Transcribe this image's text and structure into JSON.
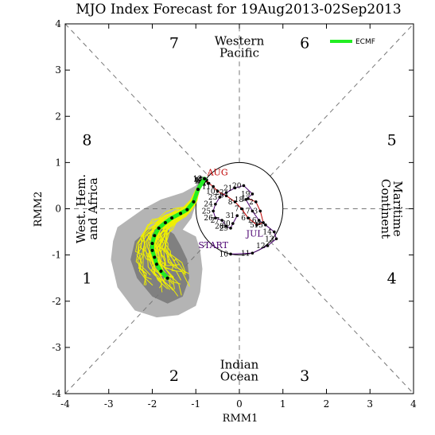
{
  "chart_data": {
    "type": "line",
    "title": "MJO Index Forecast for 19Aug2013-02Sep2013",
    "xlabel": "RMM1",
    "ylabel": "RMM2",
    "xlim": [
      -4,
      4
    ],
    "ylim": [
      -4,
      4
    ],
    "xticks": [
      "-4",
      "-3",
      "-2",
      "-1",
      "0",
      "1",
      "2",
      "3",
      "4"
    ],
    "yticks": [
      "-4",
      "-3",
      "-2",
      "-1",
      "0",
      "1",
      "2",
      "3",
      "4"
    ],
    "grid": false,
    "legend": {
      "position": "top-right",
      "entries": [
        "ECMF"
      ]
    },
    "phases": [
      {
        "label": "1",
        "x": -3.5,
        "y": -1.5
      },
      {
        "label": "2",
        "x": -1.5,
        "y": -3.6
      },
      {
        "label": "3",
        "x": 1.5,
        "y": -3.6
      },
      {
        "label": "4",
        "x": 3.5,
        "y": -1.5
      },
      {
        "label": "5",
        "x": 3.5,
        "y": 1.5
      },
      {
        "label": "6",
        "x": 1.5,
        "y": 3.6
      },
      {
        "label": "7",
        "x": -1.5,
        "y": 3.6
      },
      {
        "label": "8",
        "x": -3.5,
        "y": 1.5
      }
    ],
    "regions": [
      {
        "name": "west_hem",
        "lines": [
          "West. Hem.",
          "and Africa"
        ],
        "x": -3.5,
        "y": 0
      },
      {
        "name": "indian_ocean",
        "lines": [
          "Indian",
          "Ocean"
        ],
        "x": 0,
        "y": -3.5
      },
      {
        "name": "maritime",
        "lines": [
          "Maritime",
          "Continent"
        ],
        "x": 3.5,
        "y": 0
      },
      {
        "name": "western_pacific",
        "lines": [
          "Western",
          "Pacific"
        ],
        "x": 0,
        "y": 3.5
      }
    ],
    "month_labels": [
      {
        "text": "START",
        "x": -0.6,
        "y": -0.85
      },
      {
        "text": "JUL",
        "x": 0.35,
        "y": -0.6
      },
      {
        "text": "AUG",
        "x": -0.5,
        "y": 0.72
      }
    ],
    "series": [
      {
        "name": "July",
        "color": "#4a0070",
        "points": [
          {
            "day": "10",
            "x": -0.2,
            "y": -0.98
          },
          {
            "day": "11",
            "x": 0.3,
            "y": -0.96
          },
          {
            "day": "12",
            "x": 0.65,
            "y": -0.8
          },
          {
            "day": "13",
            "x": 0.85,
            "y": -0.65
          },
          {
            "day": "14",
            "x": 0.8,
            "y": -0.5
          },
          {
            "day": "15",
            "x": 0.6,
            "y": -0.35
          },
          {
            "day": "16",
            "x": 0.45,
            "y": -0.25
          },
          {
            "day": "17",
            "x": 0.3,
            "y": -0.05
          },
          {
            "day": "18",
            "x": 0.15,
            "y": 0.2
          },
          {
            "day": "19",
            "x": 0.3,
            "y": 0.32
          },
          {
            "day": "20",
            "x": 0.1,
            "y": 0.5
          },
          {
            "day": "21",
            "x": -0.1,
            "y": 0.45
          },
          {
            "day": "22",
            "x": -0.3,
            "y": 0.35
          },
          {
            "day": "23",
            "x": -0.45,
            "y": 0.25
          },
          {
            "day": "24",
            "x": -0.55,
            "y": 0.1
          },
          {
            "day": "25",
            "x": -0.6,
            "y": -0.05
          },
          {
            "day": "26",
            "x": -0.55,
            "y": -0.2
          },
          {
            "day": "27",
            "x": -0.4,
            "y": -0.25
          },
          {
            "day": "28",
            "x": -0.3,
            "y": -0.38
          },
          {
            "day": "29",
            "x": -0.2,
            "y": -0.42
          },
          {
            "day": "30",
            "x": -0.15,
            "y": -0.32
          },
          {
            "day": "31",
            "x": -0.05,
            "y": -0.15
          }
        ]
      },
      {
        "name": "August",
        "color": "#c00000",
        "points": [
          {
            "day": "1",
            "x": 0.2,
            "y": 0.22
          },
          {
            "day": "2",
            "x": 0.38,
            "y": 0.15
          },
          {
            "day": "3",
            "x": 0.48,
            "y": -0.05
          },
          {
            "day": "4",
            "x": 0.55,
            "y": -0.3
          },
          {
            "day": "5",
            "x": 0.4,
            "y": -0.35
          },
          {
            "day": "6",
            "x": 0.2,
            "y": -0.2
          },
          {
            "day": "7",
            "x": 0.05,
            "y": 0.0
          },
          {
            "day": "8",
            "x": -0.1,
            "y": 0.15
          },
          {
            "day": "9",
            "x": -0.3,
            "y": 0.28
          },
          {
            "day": "10",
            "x": -0.5,
            "y": 0.38
          },
          {
            "day": "11",
            "x": -0.6,
            "y": 0.48
          },
          {
            "day": "12",
            "x": -0.7,
            "y": 0.55
          },
          {
            "day": "13",
            "x": -0.75,
            "y": 0.62
          },
          {
            "day": "14",
            "x": -0.8,
            "y": 0.64
          },
          {
            "day": "15",
            "x": -0.78,
            "y": 0.6
          },
          {
            "day": "16",
            "x": -0.72,
            "y": 0.55
          },
          {
            "day": "17",
            "x": -0.76,
            "y": 0.62
          },
          {
            "day": "18",
            "x": -0.8,
            "y": 0.65
          }
        ]
      }
    ],
    "forecast": {
      "name": "ECMF",
      "color": "#22ee22",
      "points": [
        {
          "x": -0.8,
          "y": 0.65
        },
        {
          "x": -0.95,
          "y": 0.42
        },
        {
          "x": -1.05,
          "y": 0.15
        },
        {
          "x": -1.2,
          "y": -0.02
        },
        {
          "x": -1.35,
          "y": -0.1
        },
        {
          "x": -1.55,
          "y": -0.2
        },
        {
          "x": -1.7,
          "y": -0.3
        },
        {
          "x": -1.85,
          "y": -0.42
        },
        {
          "x": -1.95,
          "y": -0.58
        },
        {
          "x": -2.0,
          "y": -0.75
        },
        {
          "x": -2.0,
          "y": -0.9
        },
        {
          "x": -1.95,
          "y": -1.05
        },
        {
          "x": -1.9,
          "y": -1.2
        },
        {
          "x": -1.8,
          "y": -1.35
        },
        {
          "x": -1.65,
          "y": -1.5
        }
      ]
    }
  }
}
